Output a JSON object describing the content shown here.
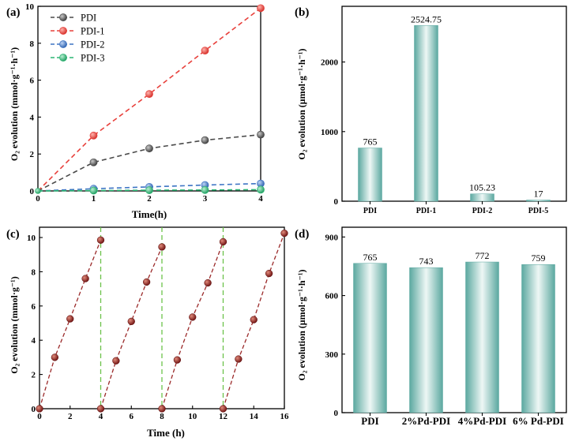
{
  "figure_labels": {
    "a": "(a)",
    "b": "(b)",
    "c": "(c)",
    "d": "(d)"
  },
  "colors": {
    "PDI": "#4a4a4a",
    "PDI-1": "#e8413c",
    "PDI-2": "#3d74c4",
    "PDI-3": "#2bb673",
    "cycle_marker": "#8b1a1a",
    "cycle_line": "#9b2a2a",
    "cycle_divider": "#6cc24a",
    "bar_center": "#e8f4f2",
    "bar_edge": "#5ba8a0"
  },
  "chart_data": [
    {
      "id": "a",
      "type": "line",
      "xlabel": "Time(h)",
      "ylabel": "O₂ evolution (mmol·g⁻¹·h⁻¹)",
      "xlim": [
        0,
        4
      ],
      "ylim": [
        0,
        10
      ],
      "xticks": [
        "0",
        "1",
        "2",
        "3",
        "4"
      ],
      "yticks": [
        "0",
        "2",
        "4",
        "6",
        "8",
        "10"
      ],
      "x": [
        0,
        1,
        2,
        3,
        4
      ],
      "series": [
        {
          "name": "PDI",
          "values": [
            0,
            1.55,
            2.3,
            2.75,
            3.05
          ]
        },
        {
          "name": "PDI-1",
          "values": [
            0,
            3.0,
            5.25,
            7.6,
            9.9
          ]
        },
        {
          "name": "PDI-2",
          "values": [
            0,
            0.12,
            0.22,
            0.32,
            0.4
          ]
        },
        {
          "name": "PDI-3",
          "values": [
            0,
            0.02,
            0.04,
            0.05,
            0.07
          ]
        }
      ],
      "legend": [
        "PDI",
        "PDI-1",
        "PDI-2",
        "PDI-3"
      ]
    },
    {
      "id": "b",
      "type": "bar",
      "ylabel": "O₂ evolution (μmol·g⁻¹·h⁻¹)",
      "ylim": [
        0,
        2800
      ],
      "yticks": [
        "0",
        "1000",
        "2000"
      ],
      "categories": [
        "PDI",
        "PDI-1",
        "PDI-2",
        "PDI-5"
      ],
      "values": [
        765,
        2524.75,
        105.23,
        17
      ],
      "value_labels": [
        "765",
        "2524.75",
        "105.23",
        "17"
      ]
    },
    {
      "id": "c",
      "type": "line",
      "xlabel": "Time (h)",
      "ylabel": "O₂ evolution (mmol·g⁻¹)",
      "xlim": [
        0,
        16
      ],
      "ylim": [
        0,
        10.6
      ],
      "xticks": [
        "0",
        "2",
        "4",
        "6",
        "8",
        "10",
        "12",
        "14",
        "16"
      ],
      "yticks": [
        "0",
        "2",
        "4",
        "6",
        "8",
        "10"
      ],
      "cycle_dividers": [
        4,
        8,
        12
      ],
      "cycles": [
        {
          "x": [
            0,
            1,
            2,
            3,
            4
          ],
          "values": [
            0,
            3.0,
            5.25,
            7.6,
            9.85
          ]
        },
        {
          "x": [
            4,
            5,
            6,
            7,
            8
          ],
          "values": [
            0,
            2.8,
            5.1,
            7.4,
            9.45
          ]
        },
        {
          "x": [
            8,
            9,
            10,
            11,
            12
          ],
          "values": [
            0,
            2.85,
            5.35,
            7.35,
            9.75
          ]
        },
        {
          "x": [
            12,
            13,
            14,
            15,
            16
          ],
          "values": [
            0,
            2.9,
            5.2,
            7.9,
            10.25
          ]
        }
      ]
    },
    {
      "id": "d",
      "type": "bar",
      "ylabel": "O₂ evolution (μmol·g⁻¹·h⁻¹)",
      "ylim": [
        0,
        950
      ],
      "yticks": [
        "0",
        "300",
        "600",
        "900"
      ],
      "categories": [
        "PDI",
        "2%Pd-PDI",
        "4%Pd-PDI",
        "6% Pd-PDI"
      ],
      "values": [
        765,
        743,
        772,
        759
      ],
      "value_labels": [
        "765",
        "743",
        "772",
        "759"
      ]
    }
  ]
}
